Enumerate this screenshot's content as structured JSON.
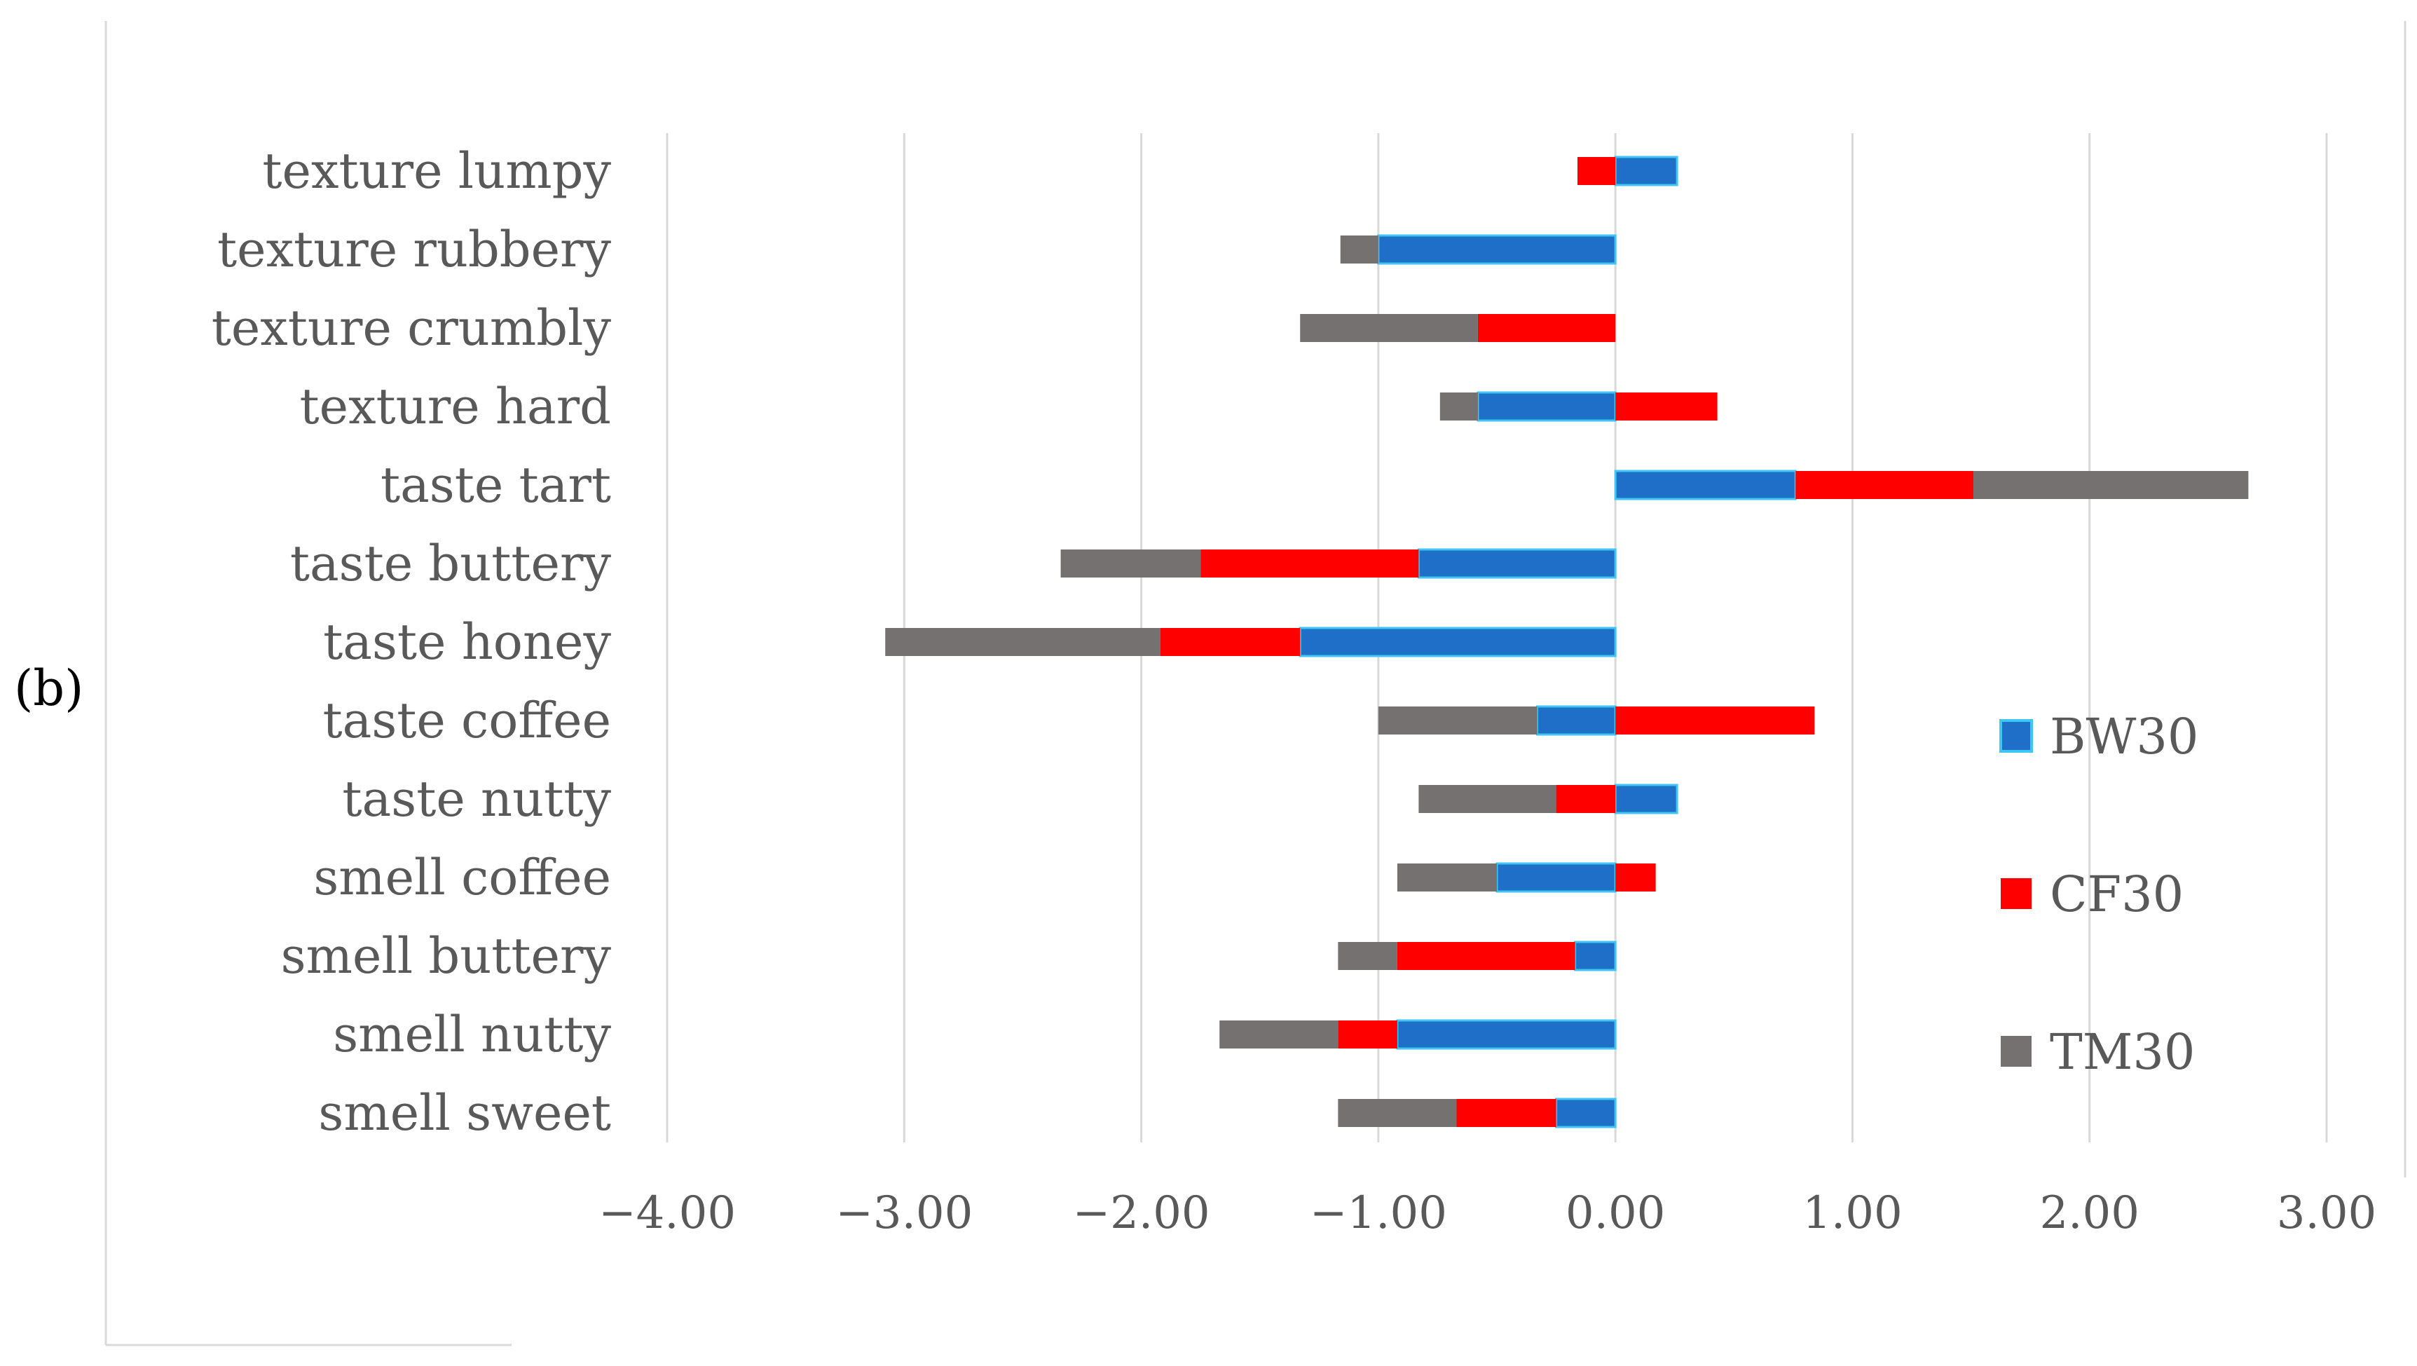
{
  "panel_label": "(b)",
  "colors": {
    "BW30": "#1f6fc9",
    "BW30_border": "#3fc6f2",
    "CF30": "#ff0000",
    "TM30": "#767171",
    "grid": "#d9d9d9",
    "text": "#595959"
  },
  "chart_data": {
    "type": "bar",
    "orientation": "horizontal",
    "stacking": "stacked-diverging",
    "categories": [
      "texture lumpy",
      "texture rubbery",
      "texture crumbly",
      "texture hard",
      "taste tart",
      "taste buttery",
      "taste honey",
      "taste coffee",
      "taste nutty",
      "smell coffee",
      "smell buttery",
      "smell nutty",
      "smell sweet"
    ],
    "series": [
      {
        "name": "BW30",
        "values": [
          0.26,
          -1.0,
          0.0,
          -0.58,
          0.76,
          -0.83,
          -1.33,
          -0.33,
          0.26,
          -0.5,
          -0.17,
          -0.92,
          -0.25
        ]
      },
      {
        "name": "CF30",
        "values": [
          -0.16,
          0.0,
          -0.58,
          0.43,
          0.75,
          -0.92,
          -0.59,
          0.84,
          -0.25,
          0.17,
          -0.75,
          -0.25,
          -0.42
        ]
      },
      {
        "name": "TM30",
        "values": [
          0.0,
          -0.16,
          -0.75,
          -0.16,
          1.16,
          -0.59,
          -1.16,
          -0.67,
          -0.58,
          -0.42,
          -0.25,
          -0.5,
          -0.5
        ]
      }
    ],
    "x_ticks": [
      "−4.00",
      "−3.00",
      "−2.00",
      "−1.00",
      "0.00",
      "1.00",
      "2.00",
      "3.00"
    ],
    "xlim": [
      -4,
      3
    ],
    "grid": "vertical",
    "legend_position": "right"
  }
}
